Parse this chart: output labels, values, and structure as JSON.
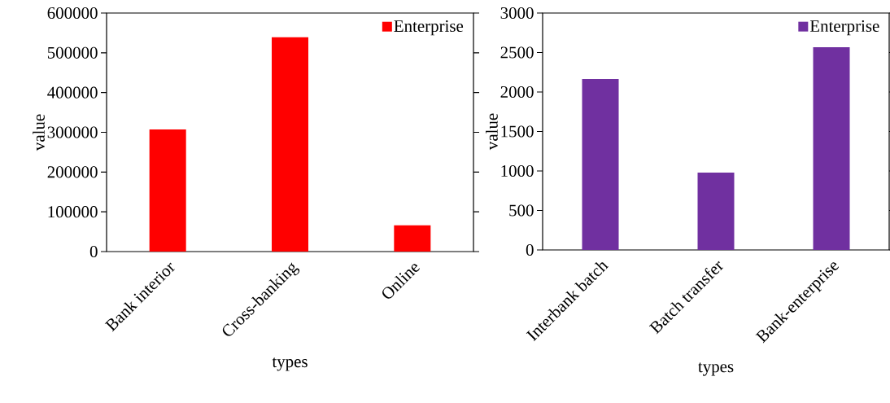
{
  "chart_data": [
    {
      "type": "bar",
      "categories": [
        "Bank interior",
        "Cross-banking",
        "Online"
      ],
      "series": [
        {
          "name": "Enterprise",
          "color": "#ff0000",
          "values": [
            307000,
            539000,
            66000
          ]
        }
      ],
      "xlabel": "types",
      "ylabel": "value",
      "ylim": [
        0,
        600000
      ],
      "yticks": [
        0,
        100000,
        200000,
        300000,
        400000,
        500000,
        600000
      ],
      "legend": "top right"
    },
    {
      "type": "bar",
      "categories": [
        "Interbank batch",
        "Batch transfer",
        "Bank-enterprise"
      ],
      "series": [
        {
          "name": "Enterprise",
          "color": "#7030a0",
          "values": [
            2165,
            980,
            2567
          ]
        }
      ],
      "xlabel": "types",
      "ylabel": "value",
      "ylim": [
        0,
        3000
      ],
      "yticks": [
        0,
        500,
        1000,
        1500,
        2000,
        2500,
        3000
      ],
      "legend": "top right"
    }
  ]
}
